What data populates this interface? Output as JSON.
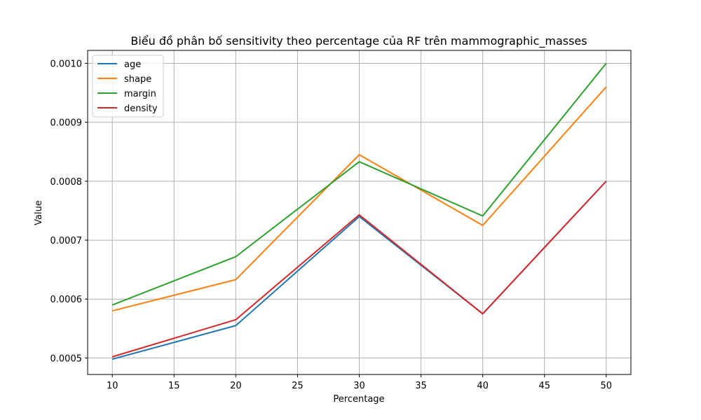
{
  "chart_data": {
    "type": "line",
    "title": "Biểu đồ phân bố sensitivity theo percentage của RF trên mammographic_masses",
    "xlabel": "Percentage",
    "ylabel": "Value",
    "x": [
      10,
      20,
      30,
      40,
      50
    ],
    "xlim": [
      8,
      52
    ],
    "ylim": [
      0.000472,
      0.001022
    ],
    "xticks": [
      10,
      15,
      20,
      25,
      30,
      35,
      40,
      45,
      50
    ],
    "xtick_labels": [
      "10",
      "15",
      "20",
      "25",
      "30",
      "35",
      "40",
      "45",
      "50"
    ],
    "yticks": [
      0.0005,
      0.0006,
      0.0007,
      0.0008,
      0.0009,
      0.001
    ],
    "ytick_labels": [
      "0.0005",
      "0.0006",
      "0.0007",
      "0.0008",
      "0.0009",
      "0.0010"
    ],
    "grid": true,
    "legend_position": "upper-left",
    "series": [
      {
        "name": "age",
        "color": "#1f77b4",
        "values": [
          0.000498,
          0.000555,
          0.00074,
          0.000575,
          0.0008
        ]
      },
      {
        "name": "shape",
        "color": "#ff7f0e",
        "values": [
          0.00058,
          0.000633,
          0.000845,
          0.000725,
          0.00096
        ]
      },
      {
        "name": "margin",
        "color": "#2ca02c",
        "values": [
          0.00059,
          0.000672,
          0.000833,
          0.000741,
          0.001
        ]
      },
      {
        "name": "density",
        "color": "#d62728",
        "values": [
          0.000502,
          0.000565,
          0.000743,
          0.000575,
          0.0008
        ]
      }
    ]
  }
}
